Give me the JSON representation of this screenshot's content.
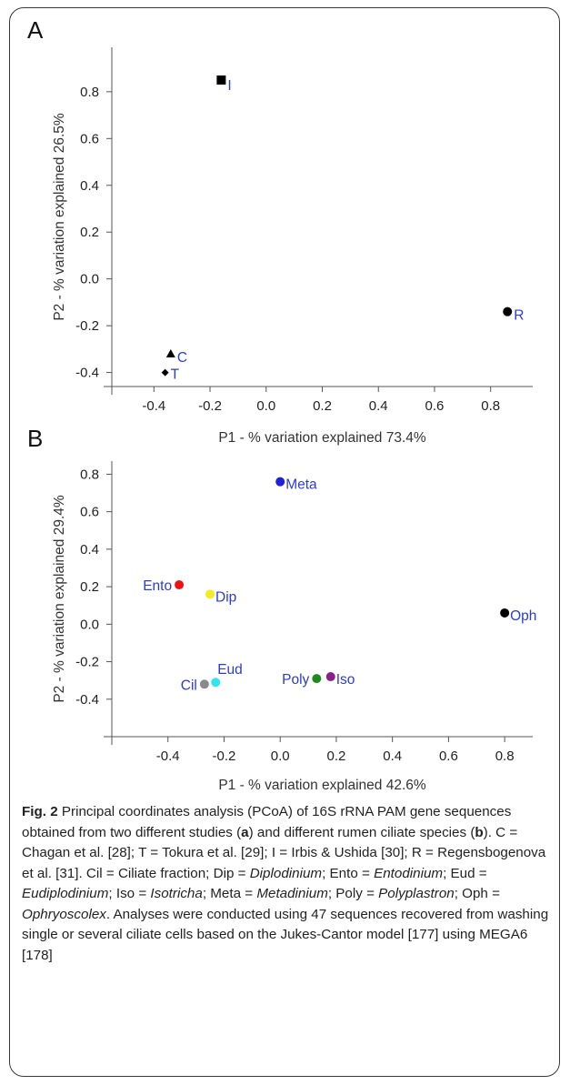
{
  "panels": {
    "a_letter": "A",
    "b_letter": "B"
  },
  "chart_data": [
    {
      "type": "scatter",
      "panel": "A",
      "xlabel": "P1 - % variation explained 73.4%",
      "ylabel": "P2 - % variation explained 26.5%",
      "xlim": [
        -0.55,
        0.95
      ],
      "ylim": [
        -0.46,
        0.99
      ],
      "xticks": [
        -0.4,
        -0.2,
        0.0,
        0.2,
        0.4,
        0.6,
        0.8
      ],
      "yticks": [
        -0.4,
        -0.2,
        0.0,
        0.2,
        0.4,
        0.6,
        0.8
      ],
      "xtick_labels": [
        "-0.4",
        "-0.2",
        "0.0",
        "0.2",
        "0.4",
        "0.6",
        "0.8"
      ],
      "ytick_labels": [
        "-0.4",
        "-0.2",
        "0.0",
        "0.2",
        "0.4",
        "0.6",
        "0.8"
      ],
      "grid": false,
      "points": [
        {
          "label": "I",
          "x": -0.16,
          "y": 0.85,
          "marker": "square",
          "color": "#000000"
        },
        {
          "label": "R",
          "x": 0.86,
          "y": -0.14,
          "marker": "circle",
          "color": "#000000"
        },
        {
          "label": "C",
          "x": -0.34,
          "y": -0.32,
          "marker": "triangle",
          "color": "#000000"
        },
        {
          "label": "T",
          "x": -0.36,
          "y": -0.4,
          "marker": "diamond",
          "color": "#000000"
        }
      ]
    },
    {
      "type": "scatter",
      "panel": "B",
      "xlabel": "P1 - % variation explained 42.6%",
      "ylabel": "P2 - % variation explained 29.4%",
      "xlim": [
        -0.6,
        0.9
      ],
      "ylim": [
        -0.6,
        0.87
      ],
      "xticks": [
        -0.4,
        -0.2,
        0.0,
        0.2,
        0.4,
        0.6,
        0.8
      ],
      "yticks": [
        -0.4,
        -0.2,
        0.0,
        0.2,
        0.4,
        0.6,
        0.8
      ],
      "xtick_labels": [
        "-0.4",
        "-0.2",
        "0.0",
        "0.2",
        "0.4",
        "0.6",
        "0.8"
      ],
      "ytick_labels": [
        "-0.4",
        "-0.2",
        "0.0",
        "0.2",
        "0.4",
        "0.6",
        "0.8"
      ],
      "grid": false,
      "points": [
        {
          "label": "Meta",
          "x": 0.0,
          "y": 0.76,
          "color": "#1f1fe0",
          "label_side": "right"
        },
        {
          "label": "Ento",
          "x": -0.36,
          "y": 0.21,
          "color": "#ee1111",
          "label_side": "left"
        },
        {
          "label": "Dip",
          "x": -0.25,
          "y": 0.16,
          "color": "#f2ec22",
          "label_side": "right"
        },
        {
          "label": "Oph",
          "x": 0.8,
          "y": 0.06,
          "color": "#000000",
          "label_side": "right"
        },
        {
          "label": "Cil",
          "x": -0.27,
          "y": -0.32,
          "color": "#8a8a8a",
          "label_side": "left"
        },
        {
          "label": "Eud",
          "x": -0.23,
          "y": -0.31,
          "color": "#2ee6ee",
          "label_side": "above"
        },
        {
          "label": "Poly",
          "x": 0.13,
          "y": -0.29,
          "color": "#1d8a1d",
          "label_side": "left"
        },
        {
          "label": "Iso",
          "x": 0.18,
          "y": -0.28,
          "color": "#8a1f8a",
          "label_side": "right"
        }
      ]
    }
  ],
  "caption": {
    "fig": "Fig. 2",
    "text_1": " Principal coordinates analysis (PCoA) of 16S rRNA PAM gene sequences obtained from two different studies (",
    "a": "a",
    "text_2": ") and different rumen ciliate species (",
    "b": "b",
    "text_3": "). C = Chagan et al. [28]; T = Tokura et al. [29]; I = Irbis & Ushida [30]; R = Regensbogenova et al. [31]. Cil = Ciliate fraction; Dip = ",
    "dip": "Diplodinium",
    "text_4": "; Ento = ",
    "ento": "Entodinium",
    "text_5": "; Eud = ",
    "eud": "Eudiplodinium",
    "text_6": "; Iso = ",
    "iso": "Isotricha",
    "text_7": "; Meta = ",
    "meta": "Metadinium",
    "text_8": "; Poly = ",
    "poly": "Polyplastron",
    "text_9": "; Oph = ",
    "oph": "Ophryoscolex",
    "text_10": ". Analyses were conducted using 47 sequences recovered from washing single or several ciliate cells based on the Jukes-Cantor model [177] using MEGA6 [178]"
  }
}
